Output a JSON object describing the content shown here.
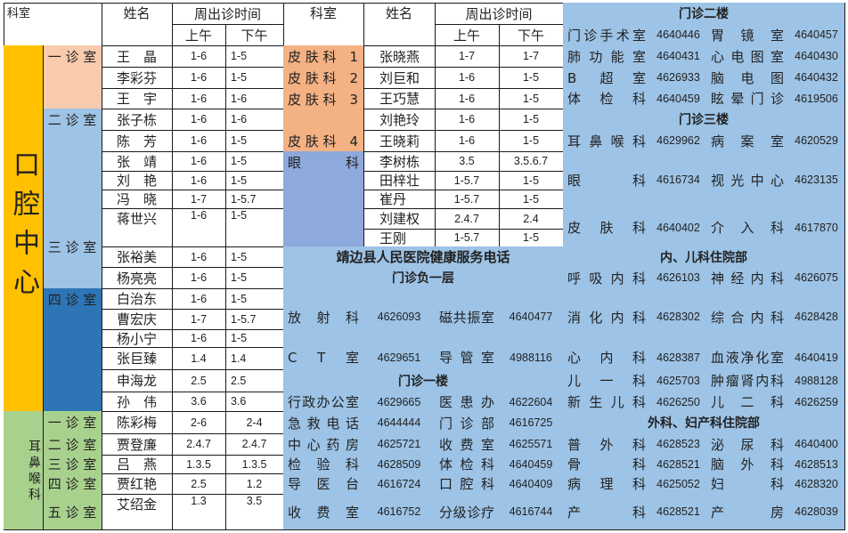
{
  "header": {
    "dept": "科室",
    "name": "姓名",
    "time": "周出诊时间",
    "am": "上午",
    "pm": "下午"
  },
  "left_groups": [
    {
      "dept": "口腔中心",
      "rooms": [
        {
          "room": "一 诊 室",
          "doctors": [
            {
              "name": "王　晶",
              "am": "1-6",
              "pm": "1-5"
            },
            {
              "name": "李彩芬",
              "am": "1-6",
              "pm": "1-5"
            },
            {
              "name": "王　宇",
              "am": "1-6",
              "pm": "1-6"
            }
          ]
        },
        {
          "room": "二 诊 室",
          "doctors": [
            {
              "name": "张子栋",
              "am": "1-6",
              "pm": "1-6"
            },
            {
              "name": "陈　芳",
              "am": "1-6",
              "pm": "1-5"
            },
            {
              "name": "张　靖",
              "am": "1-6",
              "pm": "1-5"
            },
            {
              "name": "刘　艳",
              "am": "1-6",
              "pm": "1-5"
            }
          ]
        },
        {
          "room": "三 诊 室",
          "doctors": [
            {
              "name": "冯　晓",
              "am": "1-7",
              "pm": "1-5.7"
            },
            {
              "name": "蒋世兴",
              "am": "1-6",
              "pm": "1-5"
            },
            {
              "name": "张裕美",
              "am": "1-6",
              "pm": "1-5"
            },
            {
              "name": "杨亮亮",
              "am": "1-6",
              "pm": "1-5"
            }
          ]
        },
        {
          "room": "四 诊 室",
          "doctors": [
            {
              "name": "白治东",
              "am": "1-6",
              "pm": "1-5"
            },
            {
              "name": "曹宏庆",
              "am": "1-7",
              "pm": "1-5.7"
            },
            {
              "name": "杨小宁",
              "am": "1-6",
              "pm": "1-5"
            },
            {
              "name": "张巨臻",
              "am": "1.4",
              "pm": "1.4"
            },
            {
              "name": "申海龙",
              "am": "2.5",
              "pm": "2.5"
            },
            {
              "name": "孙　伟",
              "am": "3.6",
              "pm": "3.6"
            }
          ]
        }
      ]
    },
    {
      "dept": "耳鼻喉科",
      "rooms": [
        {
          "room": "一 诊 室",
          "doctors": [
            {
              "name": "陈彩梅",
              "am": "2-6",
              "pm": "2-4"
            }
          ]
        },
        {
          "room": "二 诊 室",
          "doctors": [
            {
              "name": "贾登廉",
              "am": "2.4.7",
              "pm": "2.4.7"
            }
          ]
        },
        {
          "room": "三 诊 室",
          "doctors": [
            {
              "name": "吕　燕",
              "am": "1.3.5",
              "pm": "1.3.5"
            }
          ]
        },
        {
          "room": "四 诊 室",
          "doctors": [
            {
              "name": "贾红艳",
              "am": "2.5",
              "pm": "1.2"
            }
          ]
        },
        {
          "room": "五 诊 室",
          "doctors": [
            {
              "name": "艾绍金",
              "am": "1.3",
              "pm": "3.5"
            }
          ]
        }
      ]
    }
  ],
  "mid_depts": [
    {
      "dept": "皮 肤 科　1",
      "doctors": [
        {
          "name": "张晓燕",
          "am": "1-7",
          "pm": "1-7"
        }
      ]
    },
    {
      "dept": "皮 肤 科　2",
      "doctors": [
        {
          "name": "刘巨和",
          "am": "1-6",
          "pm": "1-5"
        }
      ]
    },
    {
      "dept": "皮 肤 科　3",
      "doctors": [
        {
          "name": "王巧慧",
          "am": "1-6",
          "pm": "1-5"
        },
        {
          "name": "刘艳玲",
          "am": "1-6",
          "pm": "1-5"
        }
      ]
    },
    {
      "dept": "皮 肤 科　4",
      "doctors": [
        {
          "name": "王晓莉",
          "am": "1-6",
          "pm": "1-5"
        }
      ]
    },
    {
      "dept": "眼科",
      "doctors": [
        {
          "name": "李树栋",
          "am": "3.5",
          "pm": "3.5.6.7"
        },
        {
          "name": "田梓壮",
          "am": "1-5.7",
          "pm": "1-5"
        },
        {
          "name": "崔丹",
          "am": "1-5.7",
          "pm": "1-5"
        },
        {
          "name": "刘建权",
          "am": "2.4.7",
          "pm": "2.4"
        },
        {
          "name": "王刚",
          "am": "1-5.7",
          "pm": "1-5"
        }
      ]
    }
  ],
  "phone_title": "靖边县人民医院健康服务电话",
  "phone_sections": [
    {
      "title": "门诊负一层",
      "rows": [
        [
          "放射科",
          "4626093",
          "磁共振室",
          "4640477"
        ],
        [
          "C T 室",
          "4629651",
          "导管室",
          "4988116"
        ]
      ]
    },
    {
      "title": "门诊一楼",
      "rows": [
        [
          "行政办公室",
          "4629665",
          "医患办",
          "4622604"
        ],
        [
          "急救电话",
          "4644444",
          "门诊部",
          "4616725"
        ],
        [
          "中心药房",
          "4625721",
          "收费室",
          "4625571"
        ],
        [
          "检验科",
          "4628509",
          "体检科",
          "4640459"
        ],
        [
          "导医台",
          "4616724",
          "口腔科",
          "4640409"
        ],
        [
          "收费室",
          "4616752",
          "分级诊疗",
          "4616744"
        ]
      ]
    },
    {
      "title": "门诊二楼",
      "rows": [
        [
          "门诊手术室",
          "4640446",
          "胃镜室",
          "4640457"
        ],
        [
          "肺功能室",
          "4640431",
          "心电图室",
          "4640430"
        ],
        [
          "B 超室",
          "4626933",
          "脑电图",
          "4640432"
        ],
        [
          "体检科",
          "4640459",
          "眩晕门诊",
          "4619506"
        ]
      ]
    },
    {
      "title": "门诊三楼",
      "rows": [
        [
          "耳鼻喉科",
          "4629962",
          "病案室",
          "4620529"
        ],
        [
          "眼科",
          "4616734",
          "视光中心",
          "4623135"
        ],
        [
          "皮肤科",
          "4640402",
          "介入科",
          "4617870"
        ]
      ]
    },
    {
      "title": "内、儿科住院部",
      "rows": [
        [
          "呼吸内科",
          "4626103",
          "神经内科",
          "4626075"
        ],
        [
          "消化内科",
          "4628302",
          "综合内科",
          "4628428"
        ],
        [
          "心内科",
          "4628387",
          "血液净化室",
          "4640419"
        ],
        [
          "儿一科",
          "4625703",
          "肿瘤肾内科",
          "4988128"
        ],
        [
          "新生儿科",
          "4626250",
          "儿二科",
          "4626259"
        ]
      ]
    },
    {
      "title": "外科、妇产科住院部",
      "rows": [
        [
          "普外科",
          "4628523",
          "泌尿科",
          "4640400"
        ],
        [
          "骨科",
          "4628521",
          "脑外科",
          "4628513"
        ],
        [
          "病理科",
          "4625052",
          "妇科",
          "4628320"
        ],
        [
          "产科",
          "4628521",
          "产房",
          "4628039"
        ]
      ]
    }
  ],
  "colors": {
    "oral": "#FFC000",
    "room1": "#F8CBAD",
    "room23": "#9DC3E6",
    "room4": "#2E75B6",
    "ent": "#A9D18E",
    "skin": "#F4B183",
    "eye": "#8EA9DB",
    "phone": "#9DC3E6"
  }
}
